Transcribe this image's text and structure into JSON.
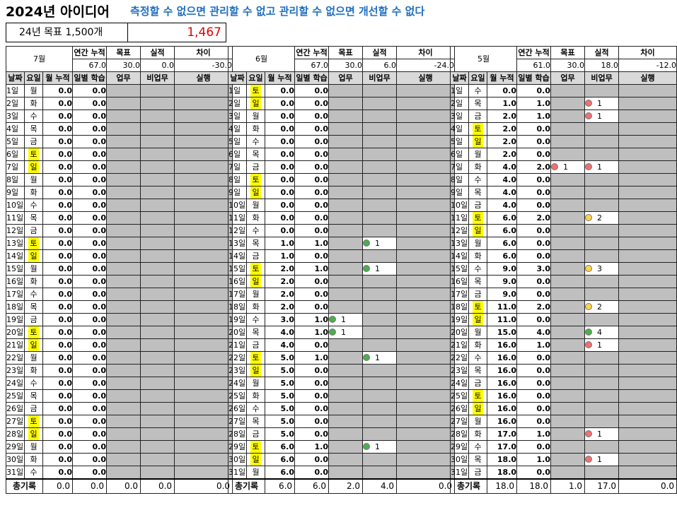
{
  "header": {
    "title": "2024년 아이디어",
    "slogan": "측정할 수 없으면 관리할 수 없고 관리할 수 없으면 개선할 수 없다",
    "goal_label": "24년 목표 1,500개",
    "goal_value": "1,467"
  },
  "labels": {
    "annual_cum": "연간 누적",
    "target": "목표",
    "actual": "실적",
    "diff": "차이",
    "date": "날짜",
    "weekday": "요일",
    "month_cum": "월 누적",
    "daily_study": "일별 학습",
    "work": "업무",
    "nonwork": "비업무",
    "execution": "실행",
    "total": "총기록"
  },
  "colors": {
    "weekend_highlight": "#ffff00",
    "slogan": "#1f6fbf",
    "goal_value": "#e00000",
    "dot_red": "#f07070",
    "dot_green": "#4cae4c",
    "dot_yellow": "#ffd24d"
  },
  "months": [
    {
      "name": "7월",
      "summary": {
        "annual_cum": "67.0",
        "target": "30.0",
        "actual": "0.0",
        "diff": "-30.0"
      },
      "totals": {
        "month_cum": "0.0",
        "daily": "0.0",
        "work": "0.0",
        "nonwork": "0.0",
        "exec": "0.0"
      },
      "days": [
        {
          "d": "1일",
          "w": "월",
          "mc": "0.0",
          "dl": "0.0"
        },
        {
          "d": "2일",
          "w": "화",
          "mc": "0.0",
          "dl": "0.0"
        },
        {
          "d": "3일",
          "w": "수",
          "mc": "0.0",
          "dl": "0.0"
        },
        {
          "d": "4일",
          "w": "목",
          "mc": "0.0",
          "dl": "0.0"
        },
        {
          "d": "5일",
          "w": "금",
          "mc": "0.0",
          "dl": "0.0"
        },
        {
          "d": "6일",
          "w": "토",
          "mc": "0.0",
          "dl": "0.0"
        },
        {
          "d": "7일",
          "w": "일",
          "mc": "0.0",
          "dl": "0.0"
        },
        {
          "d": "8일",
          "w": "월",
          "mc": "0.0",
          "dl": "0.0"
        },
        {
          "d": "9일",
          "w": "화",
          "mc": "0.0",
          "dl": "0.0"
        },
        {
          "d": "10일",
          "w": "수",
          "mc": "0.0",
          "dl": "0.0"
        },
        {
          "d": "11일",
          "w": "목",
          "mc": "0.0",
          "dl": "0.0"
        },
        {
          "d": "12일",
          "w": "금",
          "mc": "0.0",
          "dl": "0.0"
        },
        {
          "d": "13일",
          "w": "토",
          "mc": "0.0",
          "dl": "0.0"
        },
        {
          "d": "14일",
          "w": "일",
          "mc": "0.0",
          "dl": "0.0"
        },
        {
          "d": "15일",
          "w": "월",
          "mc": "0.0",
          "dl": "0.0"
        },
        {
          "d": "16일",
          "w": "화",
          "mc": "0.0",
          "dl": "0.0"
        },
        {
          "d": "17일",
          "w": "수",
          "mc": "0.0",
          "dl": "0.0"
        },
        {
          "d": "18일",
          "w": "목",
          "mc": "0.0",
          "dl": "0.0"
        },
        {
          "d": "19일",
          "w": "금",
          "mc": "0.0",
          "dl": "0.0"
        },
        {
          "d": "20일",
          "w": "토",
          "mc": "0.0",
          "dl": "0.0"
        },
        {
          "d": "21일",
          "w": "일",
          "mc": "0.0",
          "dl": "0.0"
        },
        {
          "d": "22일",
          "w": "월",
          "mc": "0.0",
          "dl": "0.0"
        },
        {
          "d": "23일",
          "w": "화",
          "mc": "0.0",
          "dl": "0.0"
        },
        {
          "d": "24일",
          "w": "수",
          "mc": "0.0",
          "dl": "0.0"
        },
        {
          "d": "25일",
          "w": "목",
          "mc": "0.0",
          "dl": "0.0"
        },
        {
          "d": "26일",
          "w": "금",
          "mc": "0.0",
          "dl": "0.0"
        },
        {
          "d": "27일",
          "w": "토",
          "mc": "0.0",
          "dl": "0.0"
        },
        {
          "d": "28일",
          "w": "일",
          "mc": "0.0",
          "dl": "0.0"
        },
        {
          "d": "29일",
          "w": "월",
          "mc": "0.0",
          "dl": "0.0"
        },
        {
          "d": "30일",
          "w": "화",
          "mc": "0.0",
          "dl": "0.0"
        },
        {
          "d": "31일",
          "w": "수",
          "mc": "0.0",
          "dl": "0.0"
        }
      ]
    },
    {
      "name": "6월",
      "summary": {
        "annual_cum": "67.0",
        "target": "30.0",
        "actual": "6.0",
        "diff": "-24.0"
      },
      "totals": {
        "month_cum": "6.0",
        "daily": "6.0",
        "work": "2.0",
        "nonwork": "4.0",
        "exec": "0.0"
      },
      "days": [
        {
          "d": "1일",
          "w": "토",
          "mc": "0.0",
          "dl": "0.0"
        },
        {
          "d": "2일",
          "w": "일",
          "mc": "0.0",
          "dl": "0.0"
        },
        {
          "d": "3일",
          "w": "월",
          "mc": "0.0",
          "dl": "0.0"
        },
        {
          "d": "4일",
          "w": "화",
          "mc": "0.0",
          "dl": "0.0"
        },
        {
          "d": "5일",
          "w": "수",
          "mc": "0.0",
          "dl": "0.0"
        },
        {
          "d": "6일",
          "w": "목",
          "mc": "0.0",
          "dl": "0.0"
        },
        {
          "d": "7일",
          "w": "금",
          "mc": "0.0",
          "dl": "0.0"
        },
        {
          "d": "8일",
          "w": "토",
          "mc": "0.0",
          "dl": "0.0"
        },
        {
          "d": "9일",
          "w": "일",
          "mc": "0.0",
          "dl": "0.0"
        },
        {
          "d": "10일",
          "w": "월",
          "mc": "0.0",
          "dl": "0.0"
        },
        {
          "d": "11일",
          "w": "화",
          "mc": "0.0",
          "dl": "0.0"
        },
        {
          "d": "12일",
          "w": "수",
          "mc": "0.0",
          "dl": "0.0"
        },
        {
          "d": "13일",
          "w": "목",
          "mc": "1.0",
          "dl": "1.0",
          "nonwork": {
            "c": "green",
            "n": "1"
          }
        },
        {
          "d": "14일",
          "w": "금",
          "mc": "1.0",
          "dl": "0.0"
        },
        {
          "d": "15일",
          "w": "토",
          "mc": "2.0",
          "dl": "1.0",
          "nonwork": {
            "c": "green",
            "n": "1"
          }
        },
        {
          "d": "16일",
          "w": "일",
          "mc": "2.0",
          "dl": "0.0"
        },
        {
          "d": "17일",
          "w": "월",
          "mc": "2.0",
          "dl": "0.0"
        },
        {
          "d": "18일",
          "w": "화",
          "mc": "2.0",
          "dl": "0.0"
        },
        {
          "d": "19일",
          "w": "수",
          "mc": "3.0",
          "dl": "1.0",
          "work": {
            "c": "green",
            "n": "1"
          }
        },
        {
          "d": "20일",
          "w": "목",
          "mc": "4.0",
          "dl": "1.0",
          "work": {
            "c": "green",
            "n": "1"
          }
        },
        {
          "d": "21일",
          "w": "금",
          "mc": "4.0",
          "dl": "0.0"
        },
        {
          "d": "22일",
          "w": "토",
          "mc": "5.0",
          "dl": "1.0",
          "nonwork": {
            "c": "green",
            "n": "1"
          }
        },
        {
          "d": "23일",
          "w": "일",
          "mc": "5.0",
          "dl": "0.0"
        },
        {
          "d": "24일",
          "w": "월",
          "mc": "5.0",
          "dl": "0.0"
        },
        {
          "d": "25일",
          "w": "화",
          "mc": "5.0",
          "dl": "0.0"
        },
        {
          "d": "26일",
          "w": "수",
          "mc": "5.0",
          "dl": "0.0"
        },
        {
          "d": "27일",
          "w": "목",
          "mc": "5.0",
          "dl": "0.0"
        },
        {
          "d": "28일",
          "w": "금",
          "mc": "5.0",
          "dl": "0.0"
        },
        {
          "d": "29일",
          "w": "토",
          "mc": "6.0",
          "dl": "1.0",
          "nonwork": {
            "c": "green",
            "n": "1"
          }
        },
        {
          "d": "30일",
          "w": "일",
          "mc": "6.0",
          "dl": "0.0"
        },
        {
          "d": "31일",
          "w": "월",
          "mc": "6.0",
          "dl": "0.0"
        }
      ]
    },
    {
      "name": "5월",
      "summary": {
        "annual_cum": "61.0",
        "target": "30.0",
        "actual": "18.0",
        "diff": "-12.0"
      },
      "totals": {
        "month_cum": "18.0",
        "daily": "18.0",
        "work": "1.0",
        "nonwork": "17.0",
        "exec": "0.0"
      },
      "days": [
        {
          "d": "1일",
          "w": "수",
          "mc": "0.0",
          "dl": "0.0"
        },
        {
          "d": "2일",
          "w": "목",
          "mc": "1.0",
          "dl": "1.0",
          "nonwork": {
            "c": "red",
            "n": "1"
          }
        },
        {
          "d": "3일",
          "w": "금",
          "mc": "2.0",
          "dl": "1.0",
          "nonwork": {
            "c": "red",
            "n": "1"
          }
        },
        {
          "d": "4일",
          "w": "토",
          "mc": "2.0",
          "dl": "0.0"
        },
        {
          "d": "5일",
          "w": "일",
          "mc": "2.0",
          "dl": "0.0"
        },
        {
          "d": "6일",
          "w": "월",
          "mc": "2.0",
          "dl": "0.0"
        },
        {
          "d": "7일",
          "w": "화",
          "mc": "4.0",
          "dl": "2.0",
          "work": {
            "c": "red",
            "n": "1"
          },
          "nonwork": {
            "c": "red",
            "n": "1"
          }
        },
        {
          "d": "8일",
          "w": "수",
          "mc": "4.0",
          "dl": "0.0"
        },
        {
          "d": "9일",
          "w": "목",
          "mc": "4.0",
          "dl": "0.0"
        },
        {
          "d": "10일",
          "w": "금",
          "mc": "4.0",
          "dl": "0.0"
        },
        {
          "d": "11일",
          "w": "토",
          "mc": "6.0",
          "dl": "2.0",
          "nonwork": {
            "c": "yellow",
            "n": "2"
          }
        },
        {
          "d": "12일",
          "w": "일",
          "mc": "6.0",
          "dl": "0.0"
        },
        {
          "d": "13일",
          "w": "월",
          "mc": "6.0",
          "dl": "0.0"
        },
        {
          "d": "14일",
          "w": "화",
          "mc": "6.0",
          "dl": "0.0"
        },
        {
          "d": "15일",
          "w": "수",
          "mc": "9.0",
          "dl": "3.0",
          "nonwork": {
            "c": "yellow",
            "n": "3"
          }
        },
        {
          "d": "16일",
          "w": "목",
          "mc": "9.0",
          "dl": "0.0"
        },
        {
          "d": "17일",
          "w": "금",
          "mc": "9.0",
          "dl": "0.0"
        },
        {
          "d": "18일",
          "w": "토",
          "mc": "11.0",
          "dl": "2.0",
          "nonwork": {
            "c": "yellow",
            "n": "2"
          }
        },
        {
          "d": "19일",
          "w": "일",
          "mc": "11.0",
          "dl": "0.0"
        },
        {
          "d": "20일",
          "w": "월",
          "mc": "15.0",
          "dl": "4.0",
          "nonwork": {
            "c": "green",
            "n": "4"
          }
        },
        {
          "d": "21일",
          "w": "화",
          "mc": "16.0",
          "dl": "1.0",
          "nonwork": {
            "c": "red",
            "n": "1"
          }
        },
        {
          "d": "22일",
          "w": "수",
          "mc": "16.0",
          "dl": "0.0"
        },
        {
          "d": "23일",
          "w": "목",
          "mc": "16.0",
          "dl": "0.0"
        },
        {
          "d": "24일",
          "w": "금",
          "mc": "16.0",
          "dl": "0.0"
        },
        {
          "d": "25일",
          "w": "토",
          "mc": "16.0",
          "dl": "0.0"
        },
        {
          "d": "26일",
          "w": "일",
          "mc": "16.0",
          "dl": "0.0"
        },
        {
          "d": "27일",
          "w": "월",
          "mc": "16.0",
          "dl": "0.0"
        },
        {
          "d": "28일",
          "w": "화",
          "mc": "17.0",
          "dl": "1.0",
          "nonwork": {
            "c": "red",
            "n": "1"
          }
        },
        {
          "d": "29일",
          "w": "수",
          "mc": "17.0",
          "dl": "0.0"
        },
        {
          "d": "30일",
          "w": "목",
          "mc": "18.0",
          "dl": "1.0",
          "nonwork": {
            "c": "red",
            "n": "1"
          }
        },
        {
          "d": "31일",
          "w": "금",
          "mc": "18.0",
          "dl": "0.0"
        }
      ]
    }
  ]
}
